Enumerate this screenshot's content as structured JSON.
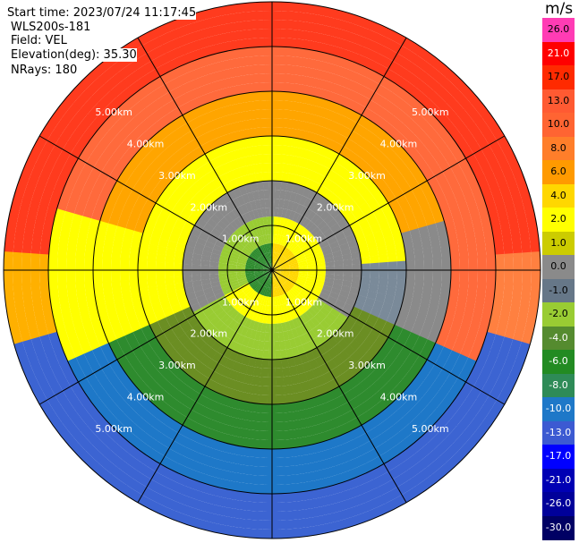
{
  "header": {
    "start_time": "Start time: 2023/07/24 11:17:45",
    "instrument": "WLS200s-181",
    "field": "Field: VEL",
    "elevation": "Elevation(deg): 35.30",
    "nrays": "NRays: 180"
  },
  "colorbar": {
    "unit": "m/s",
    "labels": [
      "26.0",
      "21.0",
      "17.0",
      "13.0",
      "10.0",
      "8.0",
      "6.0",
      "4.0",
      "2.0",
      "1.0",
      "0.0",
      "-1.0",
      "-2.0",
      "-4.0",
      "-6.0",
      "-8.0",
      "-10.0",
      "-13.0",
      "-17.0",
      "-21.0",
      "-26.0",
      "-30.0"
    ],
    "colors": [
      "#ff3cb4",
      "#ff0000",
      "#ff2a00",
      "#ff5a32",
      "#ff6432",
      "#ff7e2a",
      "#ff9a00",
      "#ffd700",
      "#ffff00",
      "#cccc00",
      "#8a8a8a",
      "#667788",
      "#99cc33",
      "#558b2f",
      "#228b22",
      "#2e8b57",
      "#1e78c8",
      "#3c5ad2",
      "#0000ff",
      "#0000b4",
      "#00009a",
      "#000064"
    ]
  },
  "chart_data": {
    "type": "ppi",
    "range_unit": "km",
    "ring_labels": [
      "1.00km",
      "2.00km",
      "3.00km",
      "4.00km",
      "5.00km"
    ],
    "ring_ranges_km": [
      1,
      2,
      3,
      4,
      5
    ],
    "max_range_km": 6,
    "spoke_angles_deg": [
      0,
      30,
      60,
      90,
      120,
      150,
      180,
      210,
      240,
      270,
      300,
      330
    ],
    "label_quadrants": [
      "NE",
      "SE",
      "SW",
      "NW"
    ],
    "field": "VEL",
    "nrays": 180
  }
}
